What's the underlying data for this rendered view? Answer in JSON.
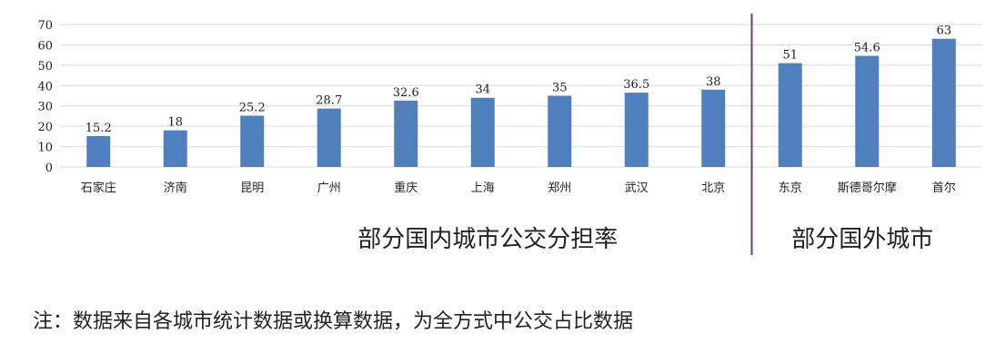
{
  "colors": {
    "bar": "#4f7fbd",
    "grid": "#d9d9d9",
    "divider": "#6b3a8c",
    "text": "#222222"
  },
  "chart_data": {
    "type": "bar",
    "categories": [
      "石家庄",
      "济南",
      "昆明",
      "广州",
      "重庆",
      "上海",
      "郑州",
      "武汉",
      "北京",
      "东京",
      "斯德哥尔摩",
      "首尔"
    ],
    "values": [
      15.2,
      18,
      25.2,
      28.7,
      32.6,
      34,
      35,
      36.5,
      38,
      51,
      54.6,
      63
    ],
    "data_labels": [
      "15.2",
      "18",
      "25.2",
      "28.7",
      "32.6",
      "34",
      "35",
      "36.5",
      "38",
      "51",
      "54.6",
      "63"
    ],
    "yticks": [
      0,
      10,
      20,
      30,
      40,
      50,
      60,
      70
    ],
    "ylim": [
      0,
      70
    ],
    "grid": true,
    "groups": [
      {
        "label": "部分国内城市公交分担率",
        "count": 9
      },
      {
        "label": "部分国外城市",
        "count": 3
      }
    ]
  },
  "note": "注：数据来自各城市统计数据或换算数据，为全方式中公交占比数据"
}
